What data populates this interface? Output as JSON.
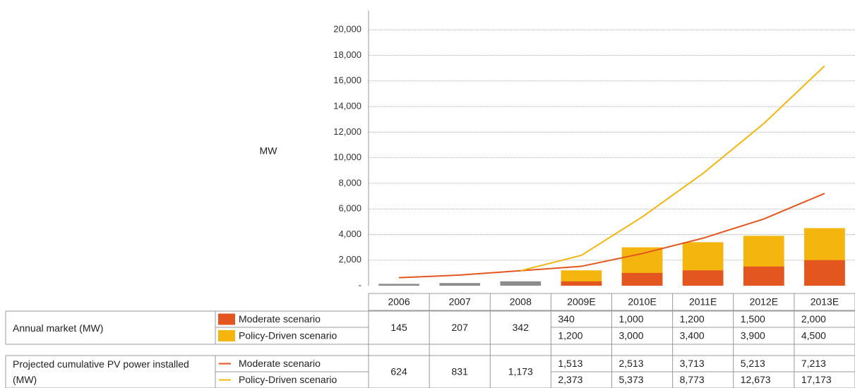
{
  "chart_data": {
    "type": "bar",
    "y_label": "MW",
    "categories": [
      "2006",
      "2007",
      "2008",
      "2009E",
      "2010E",
      "2011E",
      "2012E",
      "2013E"
    ],
    "table_groups": [
      "Annual market (MW)",
      "Projected cumulative PV power installed (MW)"
    ],
    "history_color": "#8c8c8c",
    "series": [
      {
        "name": "Moderate scenario",
        "kind": "bar",
        "group": 0,
        "color": "#e4561f",
        "values": [
          145,
          207,
          342,
          340,
          1000,
          1200,
          1500,
          2000
        ],
        "value_labels": [
          "145",
          "207",
          "342",
          "340",
          "1,000",
          "1,200",
          "1,500",
          "2,000"
        ]
      },
      {
        "name": "Policy-Driven scenario",
        "kind": "bar",
        "group": 0,
        "color": "#f4b50f",
        "values": [
          null,
          null,
          null,
          1200,
          3000,
          3400,
          3900,
          4500
        ],
        "value_labels": [
          null,
          null,
          null,
          "1,200",
          "3,000",
          "3,400",
          "3,900",
          "4,500"
        ]
      },
      {
        "name": "Moderate scenario",
        "kind": "line",
        "group": 1,
        "color": "#e4561f",
        "values": [
          624,
          831,
          1173,
          1513,
          2513,
          3713,
          5213,
          7213
        ],
        "value_labels": [
          "624",
          "831",
          "1,173",
          "1,513",
          "2,513",
          "3,713",
          "5,213",
          "7,213"
        ]
      },
      {
        "name": "Policy-Driven scenario",
        "kind": "line",
        "group": 1,
        "color": "#f4b50f",
        "values": [
          null,
          null,
          1173,
          2373,
          5373,
          8773,
          12673,
          17173
        ],
        "value_labels": [
          null,
          null,
          "1,173",
          "2,373",
          "5,373",
          "8,773",
          "12,673",
          "17,173"
        ]
      }
    ],
    "ylim": [
      0,
      21500
    ],
    "yticks": [
      {
        "value": 0,
        "label": "-"
      },
      {
        "value": 2000,
        "label": "2,000"
      },
      {
        "value": 4000,
        "label": "4,000"
      },
      {
        "value": 6000,
        "label": "6,000"
      },
      {
        "value": 8000,
        "label": "8,000"
      },
      {
        "value": 10000,
        "label": "10,000"
      },
      {
        "value": 12000,
        "label": "12,000"
      },
      {
        "value": 14000,
        "label": "14,000"
      },
      {
        "value": 16000,
        "label": "16,000"
      },
      {
        "value": 18000,
        "label": "18,000"
      },
      {
        "value": 20000,
        "label": "20,000"
      }
    ],
    "grid": true
  }
}
